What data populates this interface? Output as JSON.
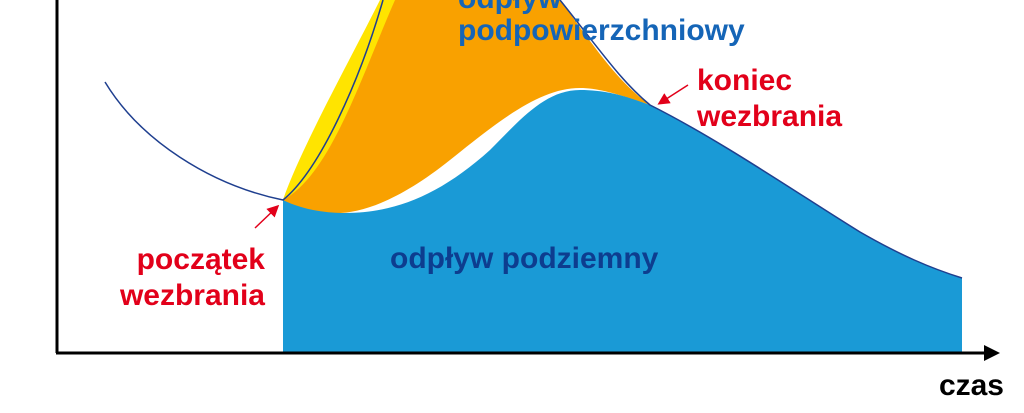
{
  "diagram": {
    "labels": {
      "surface_runoff_line1": "odpływ",
      "surface_runoff_line2": "podpowierzchniowy",
      "flood_end_line1": "koniec",
      "flood_end_line2": "wezbrania",
      "flood_start_line1": "początek",
      "flood_start_line2": "wezbrania",
      "groundwater_runoff": "odpływ podziemny",
      "time_axis": "czas"
    },
    "colors": {
      "groundwater": "#1a9ad6",
      "subsurface": "#f9a100",
      "surface": "#ffe400",
      "hydrograph_line": "#1f3f8f",
      "axis": "#000000",
      "red_labels": "#e2001a",
      "blue_labels": "#1565b7",
      "dark_blue_labels": "#0d3d8f"
    }
  }
}
